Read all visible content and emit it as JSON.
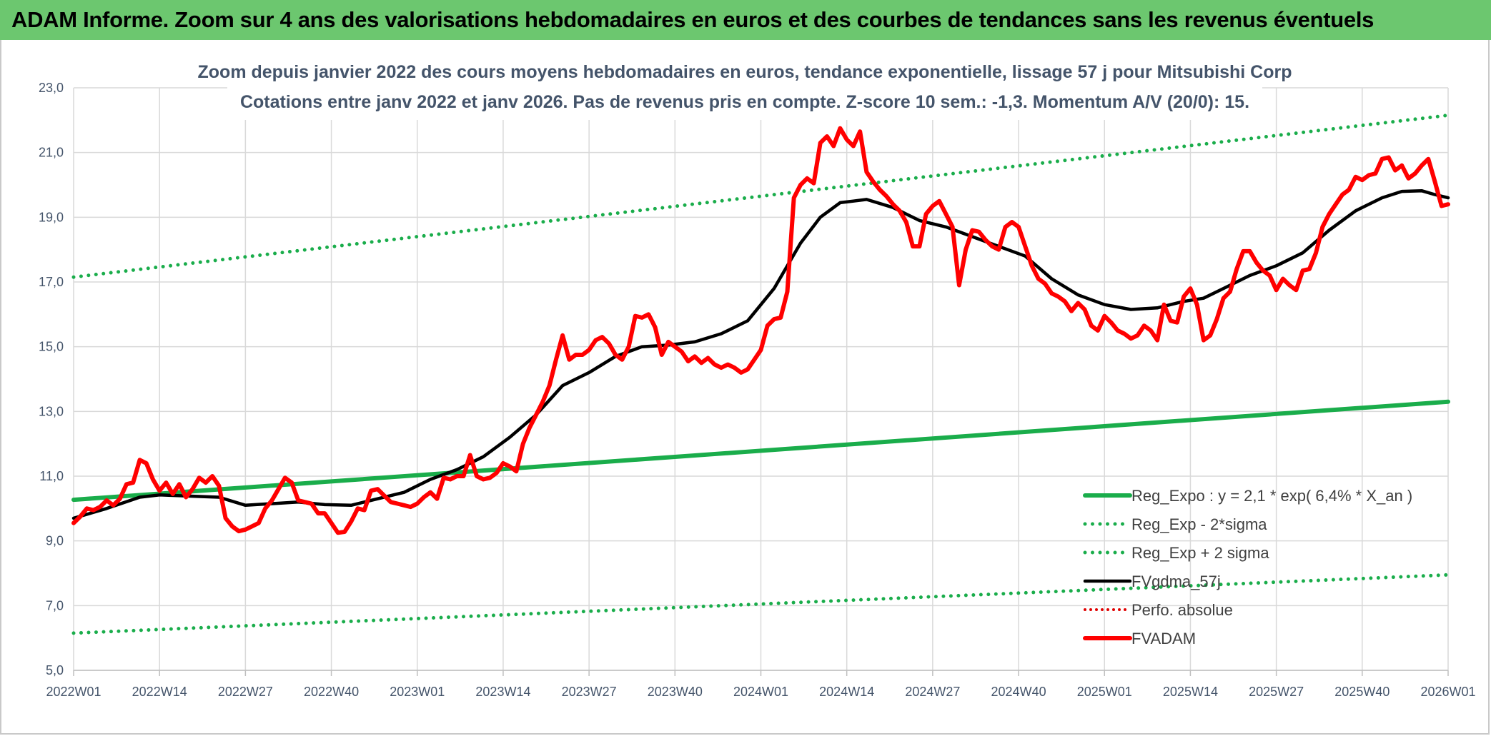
{
  "header": {
    "title": "ADAM Informe. Zoom sur 4 ans des valorisations hebdomadaires en euros et des courbes de tendances sans les revenus éventuels"
  },
  "colors": {
    "banner": "#6cc76f",
    "reg_expo": "#1aad4b",
    "sigma_lines": "#1aad4b",
    "fvgdma": "#000000",
    "perfo": "#e00000",
    "fvadam": "#ff0000",
    "grid": "#d9d9d9",
    "text": "#44546a"
  },
  "chart_data": {
    "type": "line",
    "title": [
      "Zoom depuis janvier 2022 des cours moyens hebdomadaires en euros, tendance exponentielle, lissage 57 j pour Mitsubishi Corp",
      "Cotations entre janv 2022 et janv 2026. Pas de revenus pris en compte. Z-score 10 sem.: -1,3. Momentum A/V (20/0): 15."
    ],
    "ylim": [
      5.0,
      23.0
    ],
    "yticks": [
      "5,0",
      "7,0",
      "9,0",
      "11,0",
      "13,0",
      "15,0",
      "17,0",
      "19,0",
      "21,0",
      "23,0"
    ],
    "x_tick_labels": [
      "2022W01",
      "2022W14",
      "2022W27",
      "2022W40",
      "2023W01",
      "2023W14",
      "2023W27",
      "2023W40",
      "2024W01",
      "2024W14",
      "2024W27",
      "2024W40",
      "2025W01",
      "2025W14",
      "2025W27",
      "2025W40",
      "2026W01"
    ],
    "x_tick_weeks": [
      0,
      13,
      26,
      39,
      52,
      65,
      78,
      91,
      104,
      117,
      130,
      143,
      156,
      169,
      182,
      195,
      208
    ],
    "x_range": [
      0,
      208
    ],
    "legend": [
      {
        "key": "reg_expo",
        "label": "Reg_Expo : y = 2,1 * exp( 6,4% *  X_an )",
        "style": "solid"
      },
      {
        "key": "reg_minus",
        "label": "Reg_Exp - 2*sigma",
        "style": "dotted"
      },
      {
        "key": "reg_plus",
        "label": "Reg_Exp + 2 sigma",
        "style": "dotted"
      },
      {
        "key": "fvgdma",
        "label": "FVgdma_57j",
        "style": "solid"
      },
      {
        "key": "perfo",
        "label": "Perfo. absolue",
        "style": "dotted"
      },
      {
        "key": "fvadam",
        "label": "FVADAM",
        "style": "solid"
      }
    ],
    "series": [
      {
        "name": "Reg_Expo",
        "key": "reg_expo",
        "x": [
          0,
          208
        ],
        "y": [
          10.27,
          13.3
        ]
      },
      {
        "name": "Reg_Exp + 2 sigma",
        "key": "reg_plus",
        "x": [
          0,
          208
        ],
        "y": [
          17.15,
          22.15
        ]
      },
      {
        "name": "Reg_Exp - 2*sigma",
        "key": "reg_minus",
        "x": [
          0,
          208
        ],
        "y": [
          6.15,
          7.95
        ]
      },
      {
        "name": "FVgdma_57j",
        "key": "fvgdma",
        "x": [
          0,
          5,
          10,
          13,
          18,
          22,
          26,
          30,
          34,
          38,
          42,
          46,
          50,
          54,
          58,
          62,
          66,
          70,
          74,
          78,
          82,
          86,
          90,
          94,
          98,
          102,
          106,
          110,
          113,
          116,
          118,
          120,
          124,
          128,
          132,
          136,
          140,
          144,
          148,
          152,
          156,
          160,
          164,
          168,
          171,
          174,
          178,
          182,
          186,
          190,
          194,
          198,
          201,
          204,
          206,
          208
        ],
        "y": [
          9.7,
          10.0,
          10.35,
          10.42,
          10.38,
          10.35,
          10.1,
          10.15,
          10.2,
          10.12,
          10.1,
          10.3,
          10.5,
          10.9,
          11.2,
          11.6,
          12.2,
          12.9,
          13.8,
          14.2,
          14.7,
          15.0,
          15.05,
          15.15,
          15.4,
          15.8,
          16.8,
          18.2,
          19.0,
          19.45,
          19.5,
          19.55,
          19.3,
          18.9,
          18.7,
          18.4,
          18.1,
          17.8,
          17.1,
          16.6,
          16.3,
          16.15,
          16.2,
          16.4,
          16.5,
          16.8,
          17.2,
          17.5,
          17.9,
          18.6,
          19.2,
          19.6,
          19.8,
          19.82,
          19.7,
          19.6
        ]
      },
      {
        "name": "FVADAM",
        "key": "fvadam",
        "x": [
          0,
          1,
          2,
          3,
          4,
          5,
          6,
          7,
          8,
          9,
          10,
          11,
          12,
          13,
          14,
          15,
          16,
          17,
          18,
          19,
          20,
          21,
          22,
          23,
          24,
          25,
          26,
          27,
          28,
          29,
          30,
          31,
          32,
          33,
          34,
          35,
          36,
          37,
          38,
          39,
          40,
          41,
          42,
          43,
          44,
          45,
          46,
          47,
          48,
          49,
          50,
          51,
          52,
          53,
          54,
          55,
          56,
          57,
          58,
          59,
          60,
          61,
          62,
          63,
          64,
          65,
          66,
          67,
          68,
          69,
          70,
          71,
          72,
          73,
          74,
          75,
          76,
          77,
          78,
          79,
          80,
          81,
          82,
          83,
          84,
          85,
          86,
          87,
          88,
          89,
          90,
          91,
          92,
          93,
          94,
          95,
          96,
          97,
          98,
          99,
          100,
          101,
          102,
          103,
          104,
          105,
          106,
          107,
          108,
          109,
          110,
          111,
          112,
          113,
          114,
          115,
          116,
          117,
          118,
          119,
          120,
          121,
          122,
          123,
          124,
          125,
          126,
          127,
          128,
          129,
          130,
          131,
          132,
          133,
          134,
          135,
          136,
          137,
          138,
          139,
          140,
          141,
          142,
          143,
          144,
          145,
          146,
          147,
          148,
          149,
          150,
          151,
          152,
          153,
          154,
          155,
          156,
          157,
          158,
          159,
          160,
          161,
          162,
          163,
          164,
          165,
          166,
          167,
          168,
          169,
          170,
          171,
          172,
          173,
          174,
          175,
          176,
          177,
          178,
          179,
          180,
          181,
          182,
          183,
          184,
          185,
          186,
          187,
          188,
          189,
          190,
          191,
          192,
          193,
          194,
          195,
          196,
          197,
          198,
          199,
          200,
          201,
          202,
          203,
          204,
          205,
          206,
          207,
          208
        ],
        "y": [
          9.55,
          9.75,
          10.0,
          9.95,
          10.05,
          10.25,
          10.1,
          10.3,
          10.75,
          10.8,
          11.5,
          11.4,
          10.9,
          10.55,
          10.8,
          10.45,
          10.75,
          10.35,
          10.6,
          10.95,
          10.8,
          11.0,
          10.7,
          9.7,
          9.45,
          9.3,
          9.35,
          9.45,
          9.55,
          10.0,
          10.25,
          10.6,
          10.95,
          10.8,
          10.25,
          10.2,
          10.15,
          9.85,
          9.85,
          9.55,
          9.25,
          9.28,
          9.6,
          10.0,
          9.95,
          10.55,
          10.6,
          10.4,
          10.2,
          10.15,
          10.1,
          10.05,
          10.15,
          10.35,
          10.5,
          10.3,
          10.95,
          10.9,
          11.0,
          11.0,
          11.65,
          11.0,
          10.9,
          10.95,
          11.1,
          11.4,
          11.3,
          11.15,
          12.0,
          12.5,
          12.9,
          13.3,
          13.8,
          14.6,
          15.35,
          14.6,
          14.75,
          14.75,
          14.9,
          15.2,
          15.3,
          15.1,
          14.75,
          14.6,
          15.0,
          15.95,
          15.9,
          16.0,
          15.6,
          14.75,
          15.15,
          15.0,
          14.85,
          14.55,
          14.7,
          14.5,
          14.65,
          14.45,
          14.35,
          14.45,
          14.35,
          14.2,
          14.3,
          14.6,
          14.9,
          15.65,
          15.85,
          15.9,
          16.7,
          19.6,
          20.0,
          20.2,
          20.05,
          21.3,
          21.5,
          21.2,
          21.75,
          21.4,
          21.2,
          21.65,
          20.4,
          20.1,
          19.85,
          19.65,
          19.4,
          19.2,
          18.85,
          18.1,
          18.1,
          19.1,
          19.35,
          19.5,
          19.1,
          18.7,
          16.9,
          18.0,
          18.6,
          18.55,
          18.3,
          18.1,
          18.0,
          18.7,
          18.85,
          18.7,
          18.1,
          17.5,
          17.1,
          16.95,
          16.65,
          16.55,
          16.4,
          16.1,
          16.35,
          16.15,
          15.65,
          15.5,
          15.95,
          15.75,
          15.5,
          15.4,
          15.25,
          15.35,
          15.65,
          15.5,
          15.2,
          16.3,
          15.8,
          15.75,
          16.55,
          16.8,
          16.3,
          15.2,
          15.35,
          15.85,
          16.5,
          16.7,
          17.4,
          17.95,
          17.95,
          17.6,
          17.35,
          17.2,
          16.75,
          17.1,
          16.9,
          16.75,
          17.35,
          17.4,
          17.9,
          18.7,
          19.1,
          19.4,
          19.7,
          19.85,
          20.25,
          20.15,
          20.3,
          20.35,
          20.8,
          20.85,
          20.45,
          20.6,
          20.2,
          20.35,
          20.6,
          20.8,
          20.1,
          19.35,
          19.4
        ]
      }
    ]
  }
}
